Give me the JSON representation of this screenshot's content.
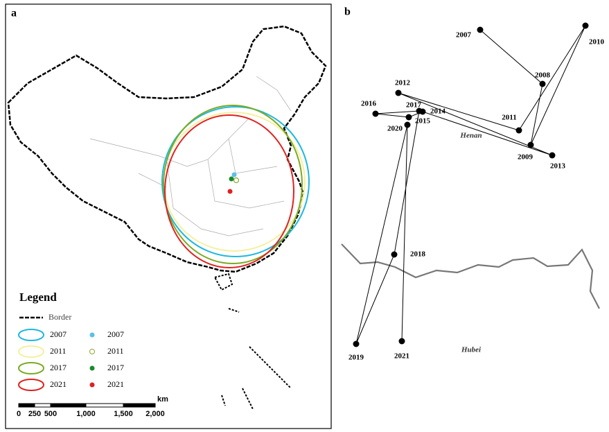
{
  "panel_a": {
    "label": "a",
    "legend": {
      "title": "Legend",
      "border": "Border",
      "ellipses": [
        {
          "year": "2007",
          "color": "#1fb7e0"
        },
        {
          "year": "2011",
          "color": "#f5f0a0"
        },
        {
          "year": "2017",
          "color": "#7aab22"
        },
        {
          "year": "2021",
          "color": "#e02020"
        }
      ],
      "centers": [
        {
          "year": "2007",
          "color": "#5bc0e8"
        },
        {
          "year": "2011",
          "color": "#8aa830"
        },
        {
          "year": "2017",
          "color": "#1a8a2a"
        },
        {
          "year": "2021",
          "color": "#e02020"
        }
      ]
    },
    "scale_bar": {
      "ticks": [
        "0",
        "250",
        "500",
        "1,000",
        "1,500",
        "2,000"
      ],
      "unit": "km"
    }
  },
  "panel_b": {
    "label": "b",
    "points": [
      "2007",
      "2008",
      "2009",
      "2010",
      "2011",
      "2012",
      "2013",
      "2014",
      "2015",
      "2016",
      "2017",
      "2018",
      "2019",
      "2020",
      "2021"
    ],
    "regions": [
      "Henan",
      "Hubei"
    ]
  }
}
